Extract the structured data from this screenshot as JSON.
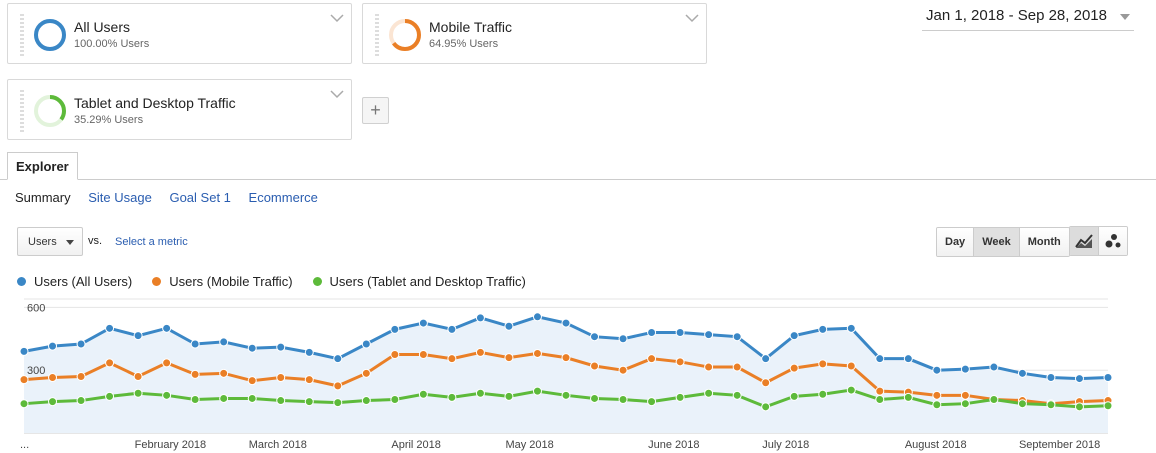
{
  "segments": [
    {
      "name": "All Users",
      "pct": "100.00% Users",
      "color": "#3a87c6",
      "fraction": 1.0
    },
    {
      "name": "Mobile Traffic",
      "pct": "64.95% Users",
      "color": "#ea7f26",
      "fraction": 0.6495
    },
    {
      "name": "Tablet and Desktop Traffic",
      "pct": "35.29% Users",
      "color": "#5dba3a",
      "fraction": 0.3529
    }
  ],
  "add_segment_label": "+",
  "date_range": "Jan 1, 2018 - Sep 28, 2018",
  "tabs": {
    "explorer": "Explorer"
  },
  "subtabs": [
    "Summary",
    "Site Usage",
    "Goal Set 1",
    "Ecommerce"
  ],
  "metric": {
    "selected": "Users",
    "vs": "vs.",
    "select_metric": "Select a metric"
  },
  "granularity": [
    "Day",
    "Week",
    "Month"
  ],
  "granularity_active": "Week",
  "chart_data": {
    "type": "line",
    "yticks": [
      300,
      600
    ],
    "ylim": [
      0,
      640
    ],
    "x_labels": [
      "...",
      "February 2018",
      "March 2018",
      "April 2018",
      "May 2018",
      "June 2018",
      "July 2018",
      "August 2018",
      "September 2018"
    ],
    "x_label_weeks": [
      0,
      5,
      9,
      14,
      18,
      23,
      27,
      32,
      36
    ],
    "series": [
      {
        "name": "Users (All Users)",
        "color": "#3a87c6",
        "values": [
          390,
          415,
          425,
          500,
          465,
          500,
          425,
          435,
          405,
          410,
          385,
          355,
          425,
          495,
          525,
          495,
          550,
          510,
          555,
          525,
          460,
          450,
          480,
          480,
          470,
          460,
          355,
          465,
          495,
          500,
          355,
          355,
          300,
          305,
          315,
          285,
          265,
          260,
          265
        ]
      },
      {
        "name": "Users (Mobile Traffic)",
        "color": "#ea7f26",
        "values": [
          255,
          265,
          270,
          335,
          270,
          335,
          280,
          285,
          250,
          265,
          255,
          225,
          285,
          375,
          375,
          355,
          385,
          360,
          380,
          360,
          320,
          300,
          355,
          340,
          315,
          315,
          240,
          310,
          330,
          320,
          200,
          195,
          180,
          180,
          160,
          155,
          140,
          150,
          155
        ]
      },
      {
        "name": "Users (Tablet and Desktop Traffic)",
        "color": "#5dba3a",
        "values": [
          140,
          150,
          155,
          175,
          190,
          180,
          160,
          165,
          165,
          155,
          150,
          145,
          155,
          160,
          185,
          170,
          190,
          175,
          200,
          180,
          165,
          160,
          150,
          170,
          190,
          180,
          125,
          175,
          185,
          205,
          160,
          170,
          135,
          140,
          160,
          140,
          135,
          125,
          130
        ]
      }
    ]
  }
}
